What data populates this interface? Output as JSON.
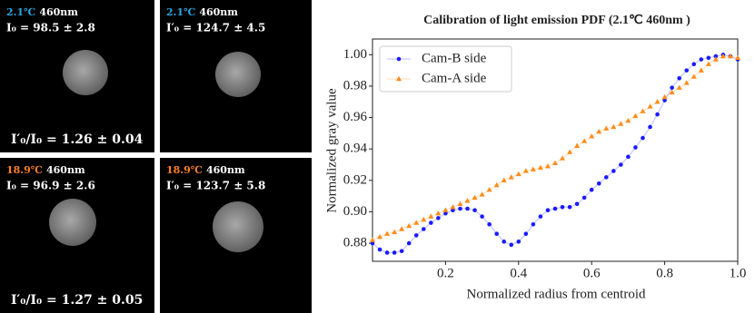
{
  "panels": [
    {
      "temperature": "2.1℃",
      "wavelength": "460nm",
      "intensity": "I₀ = 98.5 ± 2.8",
      "ratio": "I′₀/I₀ = 1.26 ± 0.04",
      "color": "#2aa7e8"
    },
    {
      "temperature": "2.1℃",
      "wavelength": "460nm",
      "intensity": "I′₀ = 124.7 ± 4.5",
      "color": "#2aa7e8"
    },
    {
      "temperature": "18.9℃",
      "wavelength": "460nm",
      "intensity": "I₀ = 96.9 ± 2.6",
      "ratio": "I′₀/I₀ = 1.27 ± 0.05",
      "color": "#ff7f27"
    },
    {
      "temperature": "18.9℃",
      "wavelength": "460nm",
      "intensity": "I′₀ = 123.7 ± 5.8",
      "color": "#ff7f27"
    }
  ],
  "chart_data": {
    "type": "line",
    "title": "Calibration of light emission PDF (2.1℃ 460nm )",
    "xlabel": "Normalized radius from centroid",
    "ylabel": "Normalized gray value",
    "x": [
      0.0,
      0.02,
      0.04,
      0.06,
      0.08,
      0.1,
      0.12,
      0.14,
      0.16,
      0.18,
      0.2,
      0.22,
      0.24,
      0.26,
      0.28,
      0.3,
      0.32,
      0.34,
      0.36,
      0.38,
      0.4,
      0.42,
      0.44,
      0.46,
      0.48,
      0.5,
      0.52,
      0.54,
      0.56,
      0.58,
      0.6,
      0.62,
      0.64,
      0.66,
      0.68,
      0.7,
      0.72,
      0.74,
      0.76,
      0.78,
      0.8,
      0.82,
      0.84,
      0.86,
      0.88,
      0.9,
      0.92,
      0.94,
      0.96,
      0.98,
      1.0
    ],
    "series": [
      {
        "name": "Cam-B side",
        "color": "#1a1aff",
        "marker": "circle",
        "values": [
          0.88,
          0.876,
          0.874,
          0.874,
          0.875,
          0.88,
          0.885,
          0.889,
          0.893,
          0.896,
          0.899,
          0.901,
          0.902,
          0.902,
          0.901,
          0.897,
          0.892,
          0.886,
          0.881,
          0.879,
          0.881,
          0.886,
          0.892,
          0.897,
          0.901,
          0.902,
          0.903,
          0.903,
          0.905,
          0.909,
          0.914,
          0.918,
          0.922,
          0.926,
          0.93,
          0.935,
          0.941,
          0.947,
          0.954,
          0.962,
          0.971,
          0.979,
          0.985,
          0.99,
          0.994,
          0.997,
          0.998,
          0.999,
          1.0,
          0.999,
          0.997
        ]
      },
      {
        "name": "Cam-A side",
        "color": "#ff8c1a",
        "marker": "triangle",
        "values": [
          0.882,
          0.884,
          0.886,
          0.887,
          0.889,
          0.891,
          0.893,
          0.895,
          0.897,
          0.899,
          0.901,
          0.903,
          0.905,
          0.907,
          0.909,
          0.911,
          0.914,
          0.917,
          0.92,
          0.922,
          0.924,
          0.926,
          0.927,
          0.928,
          0.929,
          0.931,
          0.934,
          0.938,
          0.942,
          0.945,
          0.948,
          0.951,
          0.953,
          0.954,
          0.956,
          0.958,
          0.961,
          0.964,
          0.967,
          0.97,
          0.973,
          0.976,
          0.979,
          0.982,
          0.986,
          0.99,
          0.994,
          0.997,
          0.999,
          0.999,
          0.998
        ]
      }
    ],
    "xlim": [
      0,
      1
    ],
    "ylim": [
      0.8685,
      1.01
    ],
    "xticks": [
      0.2,
      0.4,
      0.6,
      0.8,
      {
        "value": 1,
        "label": "1.0"
      }
    ],
    "yticks": [
      0.88,
      {
        "value": 0.9,
        "label": "0.90"
      },
      0.92,
      0.94,
      0.96,
      0.98,
      {
        "value": 1,
        "label": "1.00"
      }
    ],
    "legend": "upper left",
    "grid": false
  }
}
